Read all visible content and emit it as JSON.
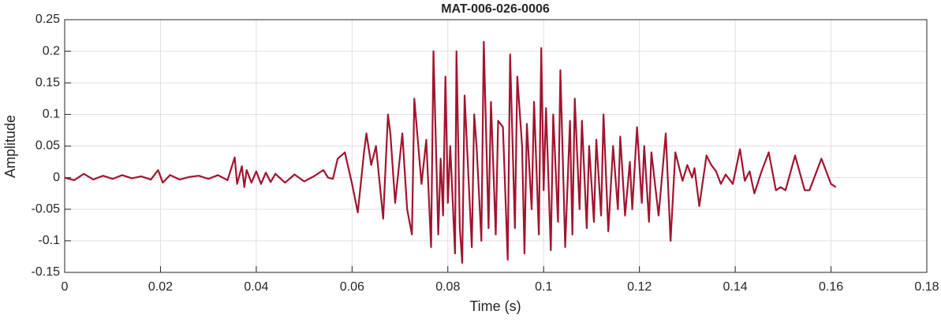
{
  "chart_data": {
    "type": "line",
    "title": "MAT-006-026-0006",
    "x_label": "Time (s)",
    "y_label": "Amplitude",
    "xlim": [
      0,
      0.18
    ],
    "ylim": [
      -0.15,
      0.25
    ],
    "xticks": [
      0,
      0.02,
      0.04,
      0.06,
      0.08,
      0.1,
      0.12,
      0.14,
      0.16,
      0.18
    ],
    "yticks": [
      -0.15,
      -0.1,
      -0.05,
      0,
      0.05,
      0.1,
      0.15,
      0.2,
      0.25
    ],
    "grid": true,
    "color": "#a2142f",
    "x": [
      0,
      0.002,
      0.004,
      0.006,
      0.008,
      0.01,
      0.012,
      0.014,
      0.016,
      0.018,
      0.0195,
      0.0205,
      0.022,
      0.024,
      0.026,
      0.028,
      0.03,
      0.032,
      0.034,
      0.0355,
      0.036,
      0.037,
      0.0375,
      0.038,
      0.039,
      0.04,
      0.041,
      0.042,
      0.043,
      0.044,
      0.046,
      0.048,
      0.05,
      0.052,
      0.054,
      0.055,
      0.056,
      0.057,
      0.0585,
      0.06,
      0.0612,
      0.0625,
      0.063,
      0.064,
      0.065,
      0.0665,
      0.0675,
      0.068,
      0.069,
      0.0705,
      0.0715,
      0.0725,
      0.073,
      0.0745,
      0.0755,
      0.0765,
      0.077,
      0.078,
      0.0785,
      0.079,
      0.0795,
      0.08,
      0.0805,
      0.0815,
      0.0818,
      0.0825,
      0.083,
      0.0835,
      0.084,
      0.085,
      0.0855,
      0.086,
      0.087,
      0.0875,
      0.0885,
      0.089,
      0.09,
      0.0905,
      0.0915,
      0.0925,
      0.093,
      0.094,
      0.0945,
      0.0955,
      0.096,
      0.0965,
      0.0975,
      0.098,
      0.099,
      0.0995,
      0.1,
      0.1005,
      0.1015,
      0.102,
      0.103,
      0.1035,
      0.1045,
      0.1055,
      0.106,
      0.1065,
      0.1075,
      0.108,
      0.109,
      0.1095,
      0.1105,
      0.111,
      0.112,
      0.1125,
      0.1135,
      0.1145,
      0.1155,
      0.116,
      0.117,
      0.118,
      0.1185,
      0.1195,
      0.1205,
      0.121,
      0.122,
      0.1225,
      0.124,
      0.1255,
      0.1265,
      0.1275,
      0.129,
      0.13,
      0.131,
      0.1315,
      0.1325,
      0.134,
      0.135,
      0.136,
      0.137,
      0.138,
      0.1395,
      0.141,
      0.142,
      0.143,
      0.144,
      0.1455,
      0.147,
      0.1485,
      0.1495,
      0.1505,
      0.1525,
      0.1545,
      0.1555,
      0.158,
      0.16,
      0.161
    ],
    "values": [
      0,
      -0.004,
      0.006,
      -0.003,
      0.003,
      -0.002,
      0.004,
      -0.001,
      0.002,
      -0.003,
      0.012,
      -0.008,
      0.004,
      -0.003,
      0.001,
      0.003,
      -0.002,
      0.004,
      -0.004,
      0.032,
      -0.01,
      0.018,
      -0.015,
      0.012,
      -0.008,
      0.01,
      -0.01,
      0.008,
      -0.007,
      0.006,
      -0.008,
      0.005,
      -0.006,
      0.002,
      0.012,
      0,
      -0.002,
      0.03,
      0.04,
      -0.01,
      -0.055,
      0.04,
      0.07,
      0.02,
      0.05,
      -0.065,
      0.1,
      0.07,
      -0.04,
      0.07,
      -0.05,
      -0.09,
      0.125,
      -0.01,
      0.06,
      -0.11,
      0.2,
      -0.09,
      0.03,
      -0.06,
      0.16,
      -0.04,
      0.05,
      -0.12,
      0.2,
      -0.08,
      -0.135,
      0.13,
      0.05,
      -0.11,
      0.1,
      0.05,
      -0.1,
      0.215,
      -0.08,
      0.12,
      -0.09,
      0.09,
      0.08,
      -0.13,
      0.195,
      -0.08,
      0.16,
      0.05,
      -0.12,
      0.085,
      -0.05,
      0.12,
      -0.09,
      0.205,
      -0.02,
      0.11,
      -0.115,
      0.1,
      -0.07,
      0.17,
      -0.11,
      0.09,
      -0.09,
      0.125,
      -0.05,
      0.09,
      -0.08,
      0.05,
      -0.07,
      0.06,
      -0.06,
      0.1,
      -0.085,
      0.05,
      -0.05,
      0.065,
      -0.06,
      0.025,
      -0.05,
      0.08,
      -0.04,
      0.05,
      -0.07,
      0.04,
      -0.06,
      0.07,
      -0.1,
      0.04,
      -0.005,
      0.02,
      0,
      0.015,
      -0.045,
      0.035,
      0.02,
      0.01,
      -0.01,
      0.005,
      -0.01,
      0.045,
      -0.005,
      0.01,
      -0.025,
      0.01,
      0.04,
      -0.02,
      -0.015,
      -0.02,
      0.035,
      -0.02,
      -0.02,
      0.03,
      -0.01,
      -0.015
    ]
  }
}
